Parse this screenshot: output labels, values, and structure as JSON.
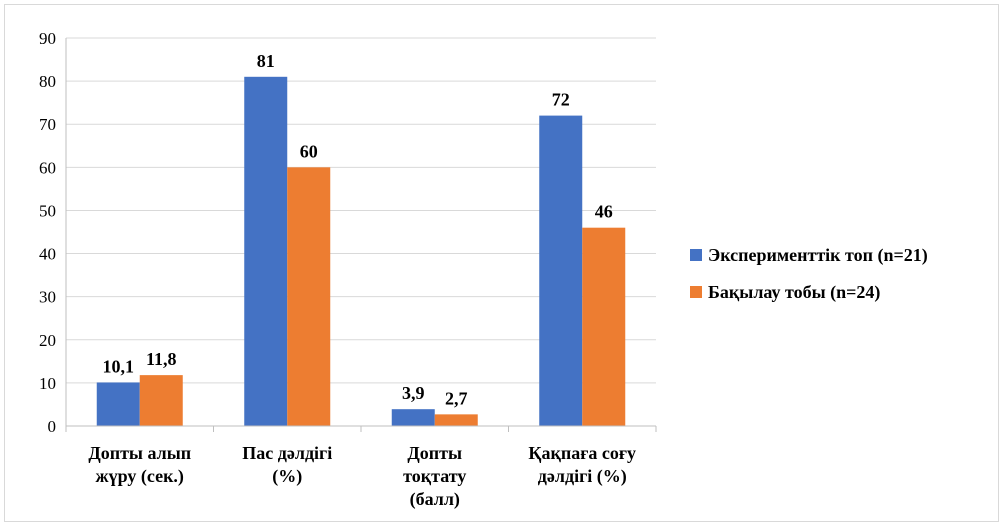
{
  "chart_data": {
    "type": "bar",
    "categories": [
      [
        "Допты алып",
        "жүру (сек.)"
      ],
      [
        "Пас дәлдігі",
        "(%)"
      ],
      [
        "Допты",
        "тоқтату",
        "(балл)"
      ],
      [
        "Қақпаға соғу",
        "дәлдігі (%)"
      ]
    ],
    "series": [
      {
        "name": "Эксперименттік топ (n=21)",
        "values": [
          10.1,
          81,
          3.9,
          72
        ],
        "labels": [
          "10,1",
          "81",
          "3,9",
          "72"
        ],
        "color": "#4472c4"
      },
      {
        "name": "Бақылау тобы (n=24)",
        "values": [
          11.8,
          60,
          2.7,
          46
        ],
        "labels": [
          "11,8",
          "60",
          "2,7",
          "46"
        ],
        "color": "#ed7d31"
      }
    ],
    "ylim": [
      0,
      90
    ],
    "yticks": [
      0,
      10,
      20,
      30,
      40,
      50,
      60,
      70,
      80,
      90
    ],
    "grid": true,
    "legend": "right"
  }
}
